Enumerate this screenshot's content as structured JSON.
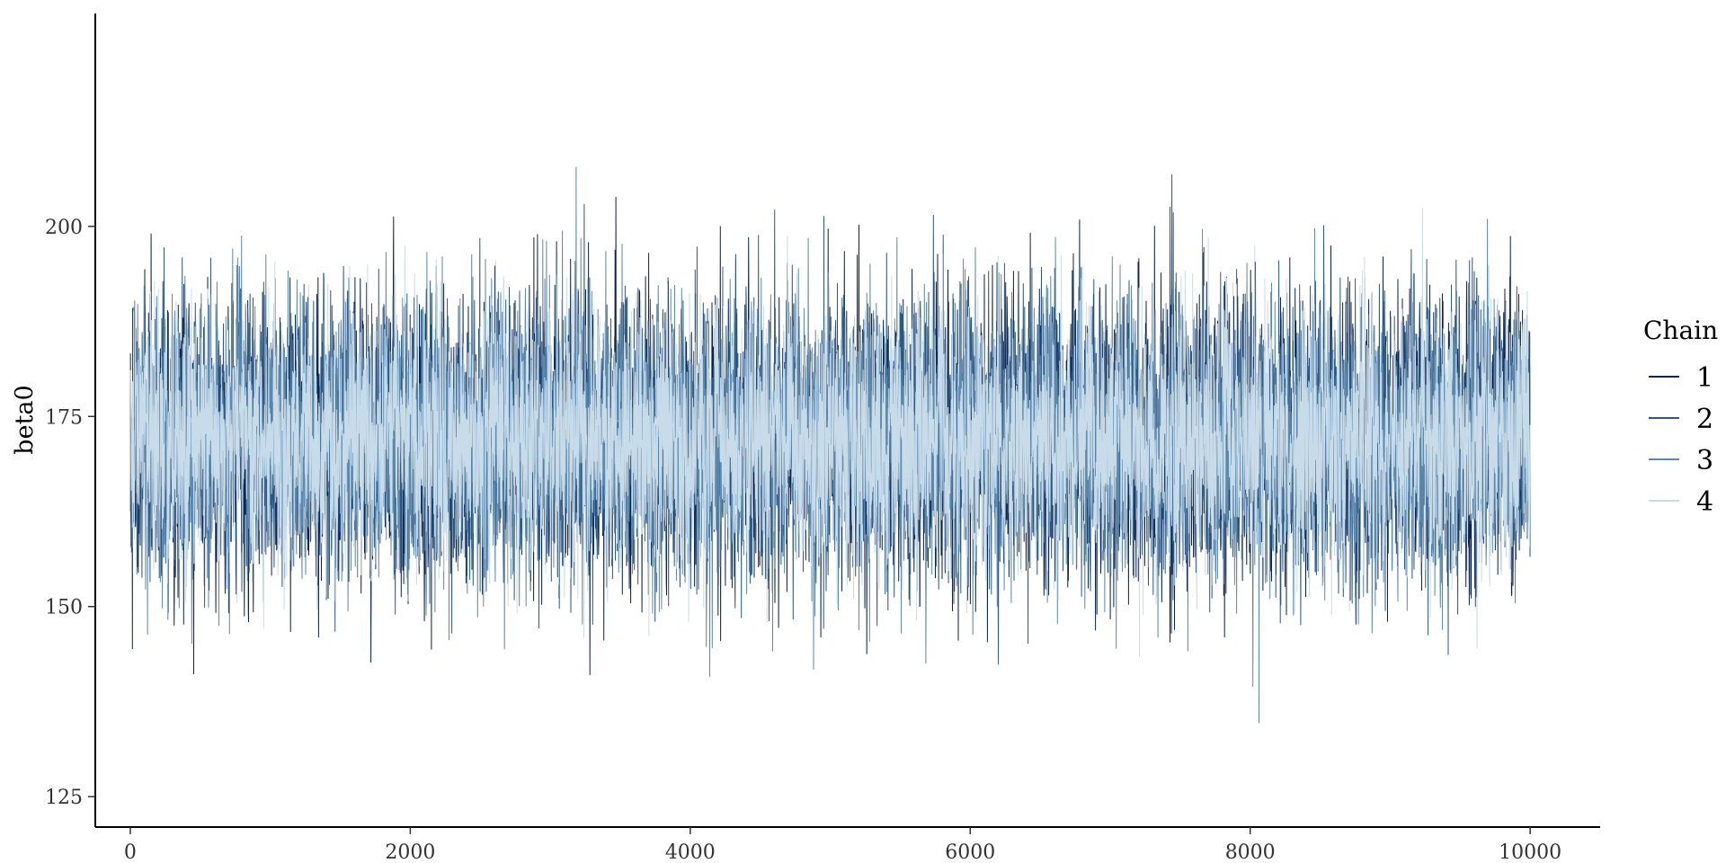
{
  "chart_data": {
    "type": "line",
    "chart_kind": "mcmc-trace",
    "title": "",
    "xlabel": "",
    "ylabel": "beta0",
    "xlim": [
      -250,
      10500
    ],
    "ylim": [
      121,
      228
    ],
    "x_ticks": [
      0,
      2000,
      4000,
      6000,
      8000,
      10000
    ],
    "y_ticks": [
      125,
      150,
      175,
      200
    ],
    "x_tick_labels": [
      "0",
      "2000",
      "4000",
      "6000",
      "8000",
      "10000"
    ],
    "y_tick_labels": [
      "125",
      "150",
      "175",
      "200"
    ],
    "grid": false,
    "legend": {
      "title": "Chain",
      "position": "right"
    },
    "iterations": [
      1,
      10000
    ],
    "series": [
      {
        "name": "1",
        "color": "#0b2350",
        "mean": 172,
        "sd": 9.3,
        "min": 125.1,
        "max": 209.6
      },
      {
        "name": "2",
        "color": "#2c5984",
        "mean": 172,
        "sd": 9.0,
        "min": 127.1,
        "max": 213.5
      },
      {
        "name": "3",
        "color": "#5c89ad",
        "mean": 172,
        "sd": 8.7,
        "min": 131.0,
        "max": 211.9
      },
      {
        "name": "4",
        "color": "#c7dbe9",
        "mean": 172,
        "sd": 8.3,
        "min": 129.1,
        "max": 217.1
      }
    ]
  }
}
